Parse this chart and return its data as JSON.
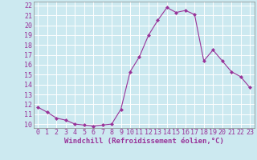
{
  "x": [
    0,
    1,
    2,
    3,
    4,
    5,
    6,
    7,
    8,
    9,
    10,
    11,
    12,
    13,
    14,
    15,
    16,
    17,
    18,
    19,
    20,
    21,
    22,
    23
  ],
  "y": [
    11.7,
    11.2,
    10.6,
    10.4,
    10.0,
    9.9,
    9.8,
    9.9,
    10.0,
    11.5,
    15.3,
    16.8,
    19.0,
    20.5,
    21.8,
    21.3,
    21.5,
    21.1,
    16.4,
    17.5,
    16.4,
    15.3,
    14.8,
    13.7
  ],
  "line_color": "#993399",
  "marker": "D",
  "marker_size": 2.0,
  "bg_color": "#cce9f0",
  "grid_color": "#ffffff",
  "xlabel": "Windchill (Refroidissement éolien,°C)",
  "yticks": [
    10,
    11,
    12,
    13,
    14,
    15,
    16,
    17,
    18,
    19,
    20,
    21,
    22
  ],
  "xlim": [
    -0.5,
    23.5
  ],
  "ylim": [
    9.6,
    22.4
  ],
  "axis_label_fontsize": 6.5,
  "tick_fontsize": 6.0
}
